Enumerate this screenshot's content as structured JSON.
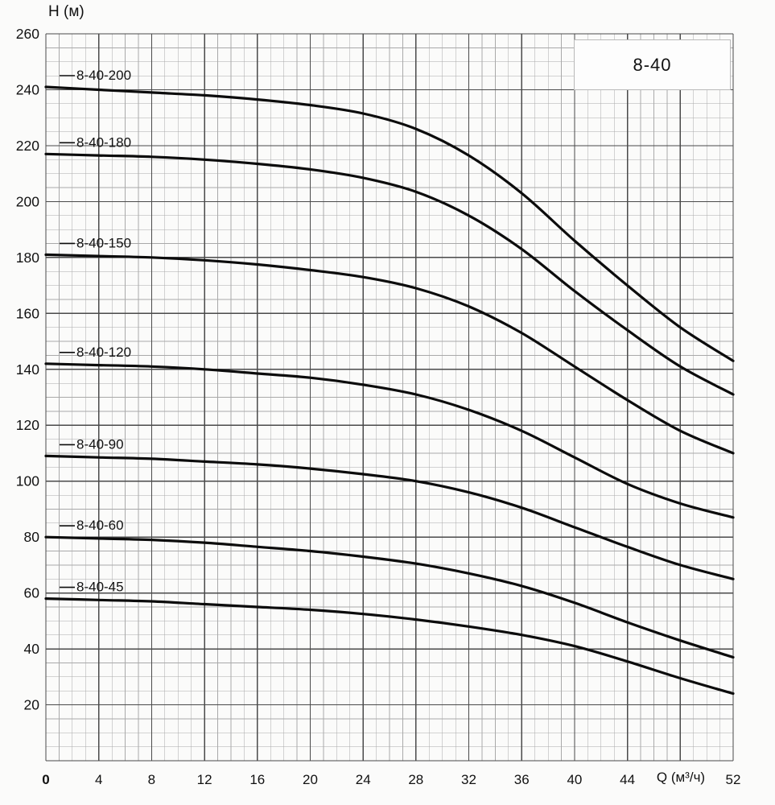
{
  "chart_data": {
    "type": "line",
    "title_box": "8-40",
    "x_axis": {
      "label": "Q (м³/ч)",
      "min": 0,
      "max": 52,
      "major_step": 4,
      "minor_step": 1,
      "tick_labels": [
        0,
        4,
        8,
        12,
        16,
        20,
        24,
        28,
        32,
        36,
        40,
        44,
        52
      ],
      "hidden_tick": 48,
      "origin_label": "0"
    },
    "y_axis": {
      "label": "H (м)",
      "min": 0,
      "max": 260,
      "major_step": 20,
      "minor_step": 5,
      "tick_labels": [
        260,
        240,
        220,
        200,
        180,
        160,
        140,
        120,
        100,
        80,
        60,
        40,
        20
      ]
    },
    "x": [
      0,
      4,
      8,
      12,
      16,
      20,
      24,
      28,
      32,
      36,
      40,
      44,
      48,
      52
    ],
    "series": [
      {
        "name": "8-40-200",
        "values": [
          241,
          240,
          239,
          238,
          236.5,
          234.5,
          231.5,
          226,
          216.5,
          203,
          186,
          170,
          155,
          143
        ]
      },
      {
        "name": "8-40-180",
        "values": [
          217,
          216.5,
          216,
          215,
          213.5,
          211.5,
          208.5,
          203.5,
          195,
          183,
          168,
          154,
          141,
          131
        ]
      },
      {
        "name": "8-40-150",
        "values": [
          181,
          180.5,
          180,
          179,
          177.5,
          175.5,
          173,
          169,
          162.5,
          153,
          141,
          129,
          118,
          110
        ]
      },
      {
        "name": "8-40-120",
        "values": [
          142,
          141.5,
          141,
          140,
          138.5,
          137,
          134.5,
          131,
          125.5,
          118,
          108.5,
          99,
          92,
          87
        ]
      },
      {
        "name": "8-40-90",
        "values": [
          109,
          108.5,
          108,
          107,
          106,
          104.5,
          102.5,
          100,
          96,
          90.5,
          83.5,
          76.5,
          70,
          65
        ]
      },
      {
        "name": "8-40-60",
        "values": [
          80,
          79.5,
          79,
          78,
          76.5,
          75,
          73,
          70.5,
          67,
          62.5,
          56.5,
          49.5,
          43,
          37
        ]
      },
      {
        "name": "8-40-45",
        "values": [
          58,
          57.5,
          57,
          56,
          55,
          54,
          52.5,
          50.5,
          48,
          45,
          41,
          35.5,
          29.5,
          24
        ]
      }
    ],
    "colors": {
      "curve": "#0c0c0c",
      "grid_minor": "#a9a9a9",
      "grid_major": "#4a4a4a",
      "text": "#111111"
    }
  }
}
